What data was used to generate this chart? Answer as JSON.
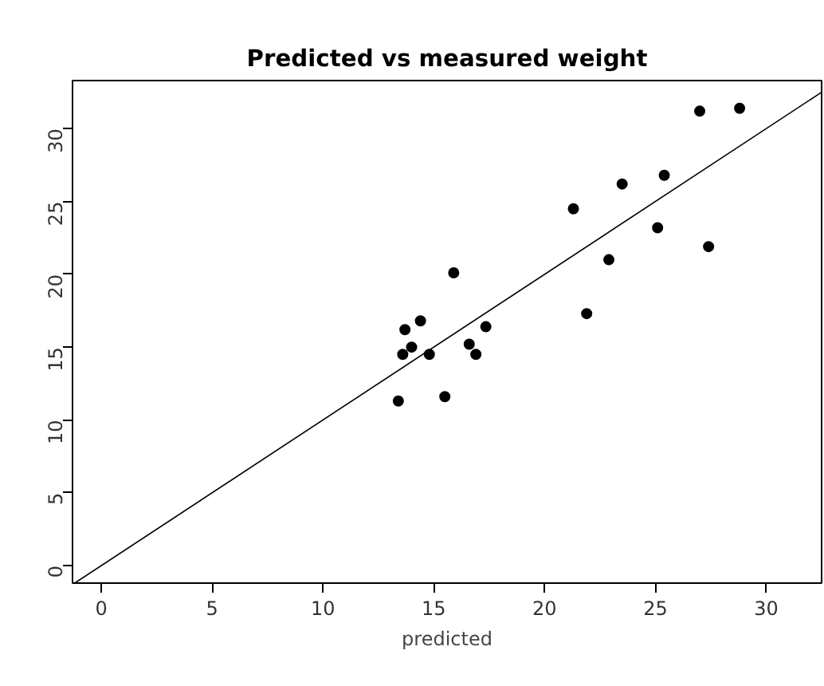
{
  "chart_data": {
    "type": "scatter",
    "title": "Predicted vs measured weight",
    "xlabel": "predicted",
    "xlim": [
      -1.3,
      32.5
    ],
    "ylim": [
      -1.2,
      33.3
    ],
    "xticks": [
      0,
      5,
      10,
      15,
      20,
      25,
      30
    ],
    "yticks": [
      0,
      5,
      10,
      15,
      20,
      25,
      30
    ],
    "grid": false,
    "series": [
      {
        "color": "#000000",
        "marker": "circle",
        "x": [
          15.9,
          13.7,
          14.4,
          17.35,
          14.0,
          13.6,
          14.8,
          16.6,
          16.9,
          13.4,
          15.5,
          27.0,
          28.8,
          23.5,
          25.4,
          21.3,
          25.1,
          22.9,
          27.4,
          21.9
        ],
        "values": [
          20.1,
          16.2,
          16.8,
          16.4,
          15.0,
          14.5,
          14.5,
          15.2,
          14.5,
          11.3,
          11.6,
          31.2,
          31.4,
          26.2,
          26.8,
          24.5,
          23.2,
          21.0,
          21.9,
          17.3
        ]
      },
      {
        "type": "line",
        "marker": "none",
        "color": "#000000",
        "x": [
          -1.2,
          32.5
        ],
        "values": [
          -1.2,
          32.5
        ]
      }
    ]
  }
}
